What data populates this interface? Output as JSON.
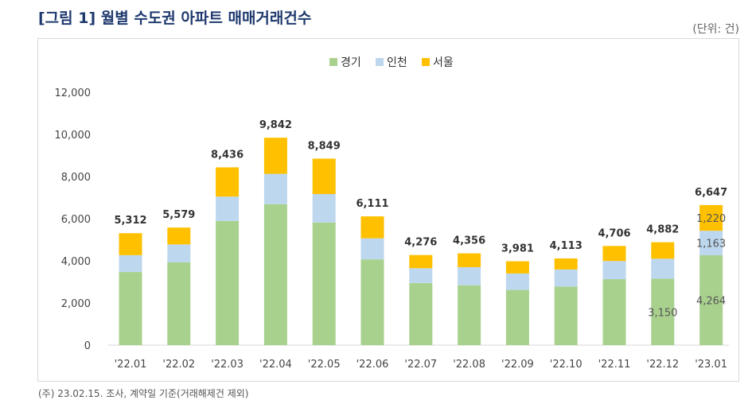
{
  "page": {
    "title": "[그림 1] 월별 수도권 아파트 매매거래건수",
    "unit": "(단위: 건)",
    "footnote": "(주) 23.02.15. 조사, 계약일 기준(거래해제건 제외)"
  },
  "chart_data": {
    "type": "bar",
    "stacked": true,
    "categories": [
      "'22.01",
      "'22.02",
      "'22.03",
      "'22.04",
      "'22.05",
      "'22.06",
      "'22.07",
      "'22.08",
      "'22.09",
      "'22.10",
      "'22.11",
      "'22.12",
      "'23.01"
    ],
    "series": [
      {
        "name": "경기",
        "color": "#a9d18e",
        "values": [
          3470,
          3930,
          5890,
          6690,
          5820,
          4070,
          2950,
          2840,
          2620,
          2780,
          3130,
          3150,
          4264
        ]
      },
      {
        "name": "인천",
        "color": "#bdd7ee",
        "values": [
          800,
          850,
          1160,
          1440,
          1350,
          1000,
          700,
          860,
          780,
          810,
          860,
          950,
          1163
        ]
      },
      {
        "name": "서울",
        "color": "#ffc000",
        "values": [
          1042,
          799,
          1386,
          1712,
          1679,
          1041,
          626,
          656,
          581,
          523,
          716,
          782,
          1220
        ]
      }
    ],
    "totals": [
      5312,
      5579,
      8436,
      9842,
      8849,
      6111,
      4276,
      4356,
      3981,
      4113,
      4706,
      4882,
      6647
    ],
    "total_labels": [
      "5,312",
      "5,579",
      "8,436",
      "9,842",
      "8,849",
      "6,111",
      "4,276",
      "4,356",
      "3,981",
      "4,113",
      "4,706",
      "4,882",
      "6,647"
    ],
    "segment_labels": [
      {
        "category": "'22.12",
        "series": "경기",
        "text": "3,150"
      },
      {
        "category": "'23.01",
        "series": "경기",
        "text": "4,264"
      },
      {
        "category": "'23.01",
        "series": "인천",
        "text": "1,163"
      },
      {
        "category": "'23.01",
        "series": "서울",
        "text": "1,220"
      }
    ],
    "ylim": [
      0,
      12000
    ],
    "yticks": [
      0,
      2000,
      4000,
      6000,
      8000,
      10000,
      12000
    ],
    "ytick_labels": [
      "0",
      "2,000",
      "4,000",
      "6,000",
      "8,000",
      "10,000",
      "12,000"
    ],
    "gridlines": false,
    "legend_position": "top-center"
  }
}
